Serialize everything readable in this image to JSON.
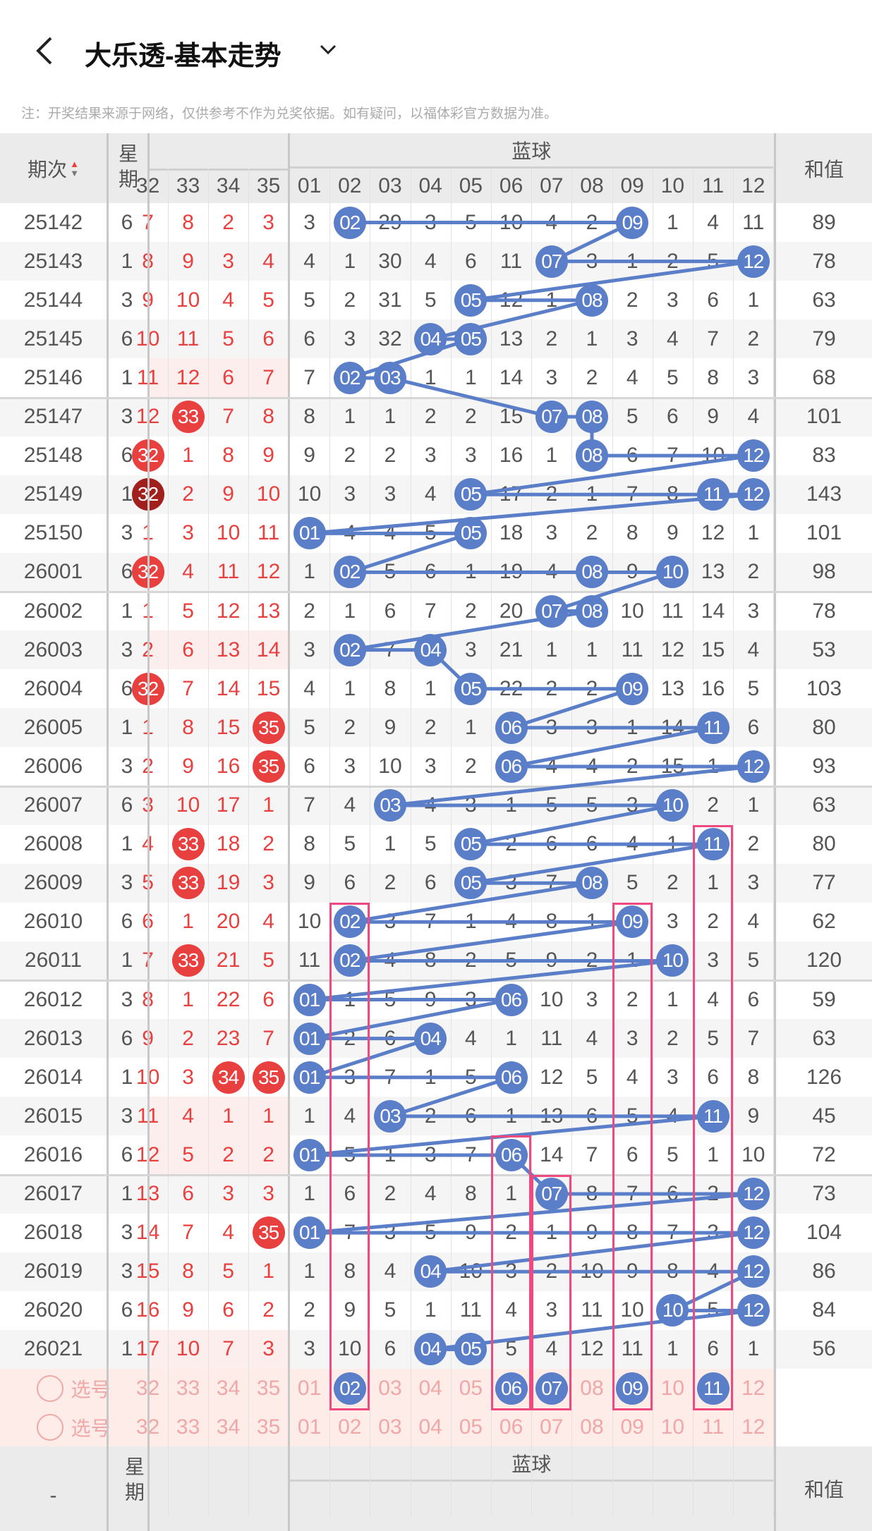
{
  "header": {
    "title": "大乐透-基本走势",
    "back_icon": "chevron-left-icon",
    "dropdown_icon": "chevron-down-icon"
  },
  "note": "注：开奖结果来源于网络，仅供参考不作为兑奖依据。如有疑问，以福体彩官方数据为准。",
  "table": {
    "period_label": "期次",
    "weekday_label": "星期",
    "blue_group_label": "蓝球",
    "sum_label": "和值",
    "front_cols": [
      "32",
      "33",
      "34",
      "35"
    ],
    "blue_cols": [
      "01",
      "02",
      "03",
      "04",
      "05",
      "06",
      "07",
      "08",
      "09",
      "10",
      "11",
      "12"
    ],
    "pick_label": "选号",
    "bottom_period_label": "-"
  },
  "colors": {
    "blue_ball": "#5a7ec8",
    "red_ball": "#e8403f",
    "dark_red_ball": "#a11f1c",
    "highlight_box": "#ee4a7f",
    "pick_row_bg": "#fdece8"
  },
  "rows": [
    {
      "period": "25142",
      "weekday": "6",
      "front": [
        "7",
        "8",
        "2",
        "3"
      ],
      "blue": [
        "3",
        "02",
        "29",
        "3",
        "5",
        "10",
        "4",
        "2",
        "09",
        "1",
        "4",
        "11"
      ],
      "sum": "89"
    },
    {
      "period": "25143",
      "weekday": "1",
      "front": [
        "8",
        "9",
        "3",
        "4"
      ],
      "blue": [
        "4",
        "1",
        "30",
        "4",
        "6",
        "11",
        "07",
        "3",
        "1",
        "2",
        "5",
        "12"
      ],
      "sum": "78"
    },
    {
      "period": "25144",
      "weekday": "3",
      "front": [
        "9",
        "10",
        "4",
        "5"
      ],
      "blue": [
        "5",
        "2",
        "31",
        "5",
        "05",
        "12",
        "1",
        "08",
        "2",
        "3",
        "6",
        "1"
      ],
      "sum": "63"
    },
    {
      "period": "25145",
      "weekday": "6",
      "front": [
        "10",
        "11",
        "5",
        "6"
      ],
      "blue": [
        "6",
        "3",
        "32",
        "04",
        "05",
        "13",
        "2",
        "1",
        "3",
        "4",
        "7",
        "2"
      ],
      "sum": "79"
    },
    {
      "period": "25146",
      "weekday": "1",
      "front": [
        "11",
        "12",
        "6",
        "7"
      ],
      "blue": [
        "7",
        "02",
        "03",
        "1",
        "1",
        "14",
        "3",
        "2",
        "4",
        "5",
        "8",
        "3"
      ],
      "sum": "68",
      "shaded": true
    },
    {
      "period": "25147",
      "weekday": "3",
      "front": [
        "12",
        "33",
        "7",
        "8"
      ],
      "blue": [
        "8",
        "1",
        "1",
        "2",
        "2",
        "15",
        "07",
        "08",
        "5",
        "6",
        "9",
        "4"
      ],
      "sum": "101"
    },
    {
      "period": "25148",
      "weekday": "6",
      "front": [
        "32",
        "1",
        "8",
        "9"
      ],
      "blue": [
        "9",
        "2",
        "2",
        "3",
        "3",
        "16",
        "1",
        "08",
        "6",
        "7",
        "10",
        "12"
      ],
      "sum": "83"
    },
    {
      "period": "25149",
      "weekday": "1",
      "front": [
        "32",
        "2",
        "9",
        "10"
      ],
      "blue": [
        "10",
        "3",
        "3",
        "4",
        "05",
        "17",
        "2",
        "1",
        "7",
        "8",
        "11",
        "12"
      ],
      "sum": "143",
      "dark_ball": true
    },
    {
      "period": "25150",
      "weekday": "3",
      "front": [
        "1",
        "3",
        "10",
        "11"
      ],
      "blue": [
        "01",
        "4",
        "4",
        "5",
        "05",
        "18",
        "3",
        "2",
        "8",
        "9",
        "12",
        "1"
      ],
      "sum": "101"
    },
    {
      "period": "26001",
      "weekday": "6",
      "front": [
        "32",
        "4",
        "11",
        "12"
      ],
      "blue": [
        "1",
        "02",
        "5",
        "6",
        "1",
        "19",
        "4",
        "08",
        "9",
        "10",
        "13",
        "2"
      ],
      "sum": "98"
    },
    {
      "period": "26002",
      "weekday": "1",
      "front": [
        "1",
        "5",
        "12",
        "13"
      ],
      "blue": [
        "2",
        "1",
        "6",
        "7",
        "2",
        "20",
        "07",
        "08",
        "10",
        "11",
        "14",
        "3"
      ],
      "sum": "78"
    },
    {
      "period": "26003",
      "weekday": "3",
      "front": [
        "2",
        "6",
        "13",
        "14"
      ],
      "blue": [
        "3",
        "02",
        "7",
        "04",
        "3",
        "21",
        "1",
        "1",
        "11",
        "12",
        "15",
        "4"
      ],
      "sum": "53",
      "shaded": true
    },
    {
      "period": "26004",
      "weekday": "6",
      "front": [
        "32",
        "7",
        "14",
        "15"
      ],
      "blue": [
        "4",
        "1",
        "8",
        "1",
        "05",
        "22",
        "2",
        "2",
        "09",
        "13",
        "16",
        "5"
      ],
      "sum": "103"
    },
    {
      "period": "26005",
      "weekday": "1",
      "front": [
        "1",
        "8",
        "15",
        "35"
      ],
      "blue": [
        "5",
        "2",
        "9",
        "2",
        "1",
        "06",
        "3",
        "3",
        "1",
        "14",
        "11",
        "6"
      ],
      "sum": "80"
    },
    {
      "period": "26006",
      "weekday": "3",
      "front": [
        "2",
        "9",
        "16",
        "35"
      ],
      "blue": [
        "6",
        "3",
        "10",
        "3",
        "2",
        "06",
        "4",
        "4",
        "2",
        "15",
        "1",
        "12"
      ],
      "sum": "93"
    },
    {
      "period": "26007",
      "weekday": "6",
      "front": [
        "3",
        "10",
        "17",
        "1"
      ],
      "blue": [
        "7",
        "4",
        "03",
        "4",
        "3",
        "1",
        "5",
        "5",
        "3",
        "10",
        "2",
        "1"
      ],
      "sum": "63"
    },
    {
      "period": "26008",
      "weekday": "1",
      "front": [
        "4",
        "33",
        "18",
        "2"
      ],
      "blue": [
        "8",
        "5",
        "1",
        "5",
        "05",
        "2",
        "6",
        "6",
        "4",
        "1",
        "11",
        "2"
      ],
      "sum": "80"
    },
    {
      "period": "26009",
      "weekday": "3",
      "front": [
        "5",
        "33",
        "19",
        "3"
      ],
      "blue": [
        "9",
        "6",
        "2",
        "6",
        "05",
        "3",
        "7",
        "08",
        "5",
        "2",
        "1",
        "3"
      ],
      "sum": "77"
    },
    {
      "period": "26010",
      "weekday": "6",
      "front": [
        "6",
        "1",
        "20",
        "4"
      ],
      "blue": [
        "10",
        "02",
        "3",
        "7",
        "1",
        "4",
        "8",
        "1",
        "09",
        "3",
        "2",
        "4"
      ],
      "sum": "62"
    },
    {
      "period": "26011",
      "weekday": "1",
      "front": [
        "7",
        "33",
        "21",
        "5"
      ],
      "blue": [
        "11",
        "02",
        "4",
        "8",
        "2",
        "5",
        "9",
        "2",
        "1",
        "10",
        "3",
        "5"
      ],
      "sum": "120"
    },
    {
      "period": "26012",
      "weekday": "3",
      "front": [
        "8",
        "1",
        "22",
        "6"
      ],
      "blue": [
        "01",
        "1",
        "5",
        "9",
        "3",
        "06",
        "10",
        "3",
        "2",
        "1",
        "4",
        "6"
      ],
      "sum": "59"
    },
    {
      "period": "26013",
      "weekday": "6",
      "front": [
        "9",
        "2",
        "23",
        "7"
      ],
      "blue": [
        "01",
        "2",
        "6",
        "04",
        "4",
        "1",
        "11",
        "4",
        "3",
        "2",
        "5",
        "7"
      ],
      "sum": "63"
    },
    {
      "period": "26014",
      "weekday": "1",
      "front": [
        "10",
        "3",
        "34",
        "35"
      ],
      "blue": [
        "01",
        "3",
        "7",
        "1",
        "5",
        "06",
        "12",
        "5",
        "4",
        "3",
        "6",
        "8"
      ],
      "sum": "126"
    },
    {
      "period": "26015",
      "weekday": "3",
      "front": [
        "11",
        "4",
        "1",
        "1"
      ],
      "blue": [
        "1",
        "4",
        "03",
        "2",
        "6",
        "1",
        "13",
        "6",
        "5",
        "4",
        "11",
        "9"
      ],
      "sum": "45",
      "shaded": true
    },
    {
      "period": "26016",
      "weekday": "6",
      "front": [
        "12",
        "5",
        "2",
        "2"
      ],
      "blue": [
        "01",
        "5",
        "1",
        "3",
        "7",
        "06",
        "14",
        "7",
        "6",
        "5",
        "1",
        "10"
      ],
      "sum": "72",
      "shaded": true
    },
    {
      "period": "26017",
      "weekday": "1",
      "front": [
        "13",
        "6",
        "3",
        "3"
      ],
      "blue": [
        "1",
        "6",
        "2",
        "4",
        "8",
        "1",
        "07",
        "8",
        "7",
        "6",
        "2",
        "12"
      ],
      "sum": "73"
    },
    {
      "period": "26018",
      "weekday": "3",
      "front": [
        "14",
        "7",
        "4",
        "35"
      ],
      "blue": [
        "01",
        "7",
        "3",
        "5",
        "9",
        "2",
        "1",
        "9",
        "8",
        "7",
        "3",
        "12"
      ],
      "sum": "104"
    },
    {
      "period": "26019",
      "weekday": "3",
      "front": [
        "15",
        "8",
        "5",
        "1"
      ],
      "blue": [
        "1",
        "8",
        "4",
        "04",
        "10",
        "3",
        "2",
        "10",
        "9",
        "8",
        "4",
        "12"
      ],
      "sum": "86"
    },
    {
      "period": "26020",
      "weekday": "6",
      "front": [
        "16",
        "9",
        "6",
        "2"
      ],
      "blue": [
        "2",
        "9",
        "5",
        "1",
        "11",
        "4",
        "3",
        "11",
        "10",
        "10",
        "5",
        "12"
      ],
      "sum": "84"
    },
    {
      "period": "26021",
      "weekday": "1",
      "front": [
        "17",
        "10",
        "7",
        "3"
      ],
      "blue": [
        "3",
        "10",
        "6",
        "04",
        "05",
        "5",
        "4",
        "12",
        "11",
        "1",
        "6",
        "1"
      ],
      "sum": "56",
      "shaded": true
    }
  ],
  "picks": [
    {
      "selected_blue": [
        "02",
        "06",
        "07",
        "09",
        "11"
      ]
    },
    {
      "selected_blue": []
    }
  ],
  "highlights": [
    {
      "col": "02",
      "from": "26010"
    },
    {
      "col": "06",
      "from": "26016"
    },
    {
      "col": "07",
      "from": "26017"
    },
    {
      "col": "09",
      "from": "26010"
    },
    {
      "col": "11",
      "from": "26008"
    }
  ]
}
